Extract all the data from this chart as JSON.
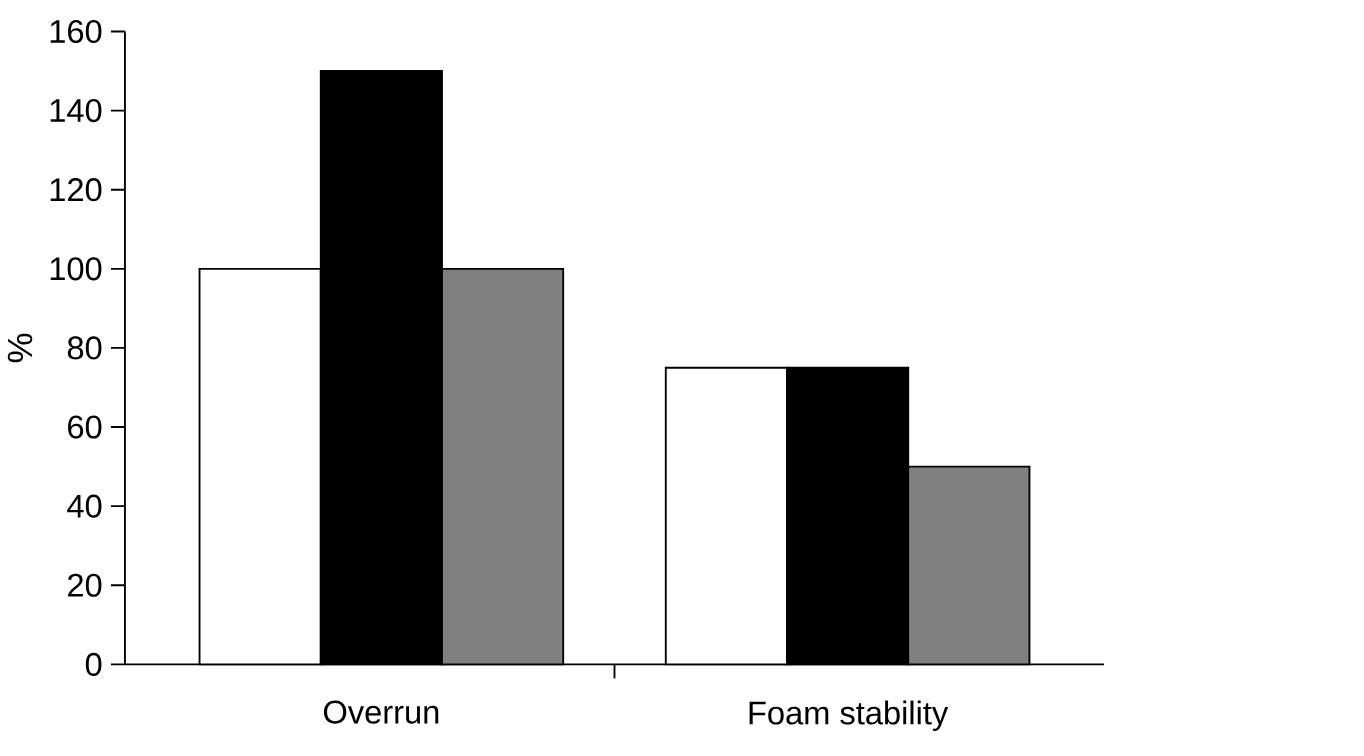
{
  "chart_data": {
    "type": "bar",
    "ylabel": "%",
    "categories": [
      "Overrun",
      "Foam stability"
    ],
    "series": [
      {
        "color": "#ffffff",
        "values": [
          100,
          75
        ]
      },
      {
        "color": "#000000",
        "values": [
          150,
          75
        ]
      },
      {
        "color": "#808080",
        "values": [
          100,
          50
        ]
      }
    ],
    "ylim": [
      0,
      160
    ],
    "yticks": [
      0,
      20,
      40,
      60,
      80,
      100,
      120,
      140,
      160
    ]
  }
}
